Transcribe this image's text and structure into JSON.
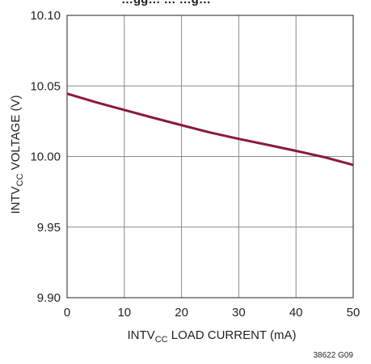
{
  "header": {
    "partial_title": "…gg… … …g…"
  },
  "chart_data": {
    "type": "line",
    "title": "",
    "xlabel": {
      "prefix": "INTV",
      "sub": "CC",
      "suffix": " LOAD CURRENT (mA)"
    },
    "ylabel": {
      "prefix": "INTV",
      "sub": "CC",
      "suffix": " VOLTAGE (V)"
    },
    "xlim": [
      0,
      50
    ],
    "ylim": [
      9.9,
      10.1
    ],
    "x_ticks": [
      0,
      10,
      20,
      30,
      40,
      50
    ],
    "y_ticks": [
      9.9,
      9.95,
      10.0,
      10.05,
      10.1
    ],
    "x_tick_labels": [
      "0",
      "10",
      "20",
      "30",
      "40",
      "50"
    ],
    "y_tick_labels": [
      "9.90",
      "9.95",
      "10.00",
      "10.05",
      "10.10"
    ],
    "grid": true,
    "series": [
      {
        "color": "#8b1a3a",
        "x": [
          0,
          5,
          10,
          15,
          20,
          25,
          30,
          35,
          40,
          45,
          50
        ],
        "y": [
          10.0445,
          10.0385,
          10.033,
          10.0275,
          10.0222,
          10.017,
          10.0125,
          10.0083,
          10.004,
          9.9995,
          9.994
        ]
      }
    ]
  },
  "figure_id": "38622 G09"
}
